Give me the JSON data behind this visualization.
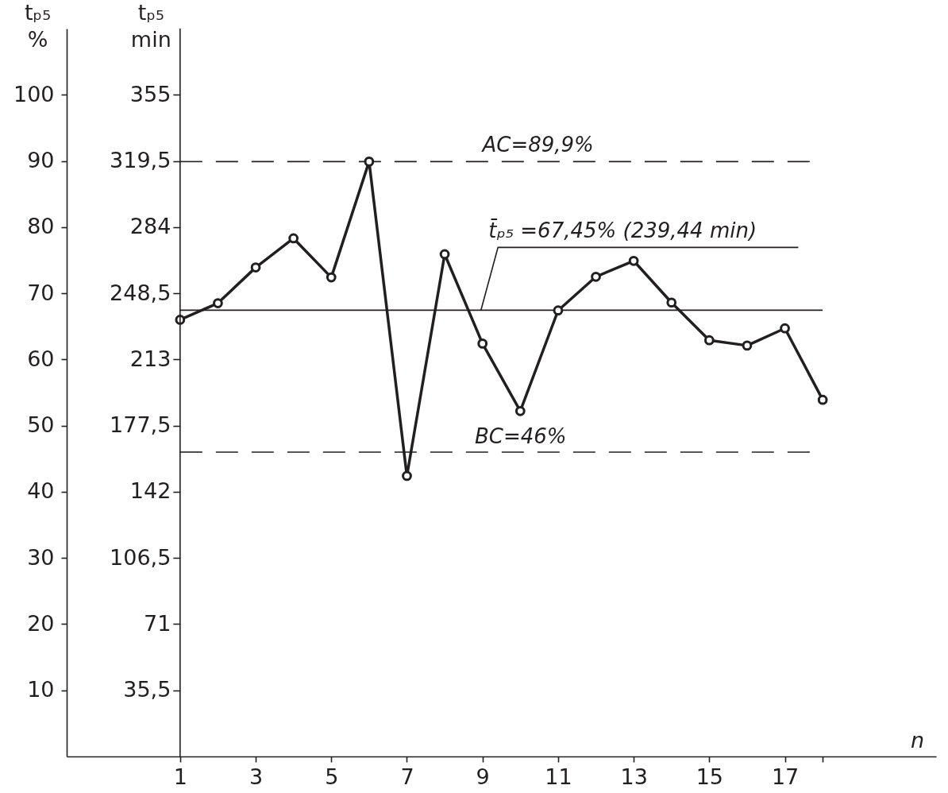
{
  "chart_data": {
    "type": "line",
    "xlabel": "n",
    "ylabel": "tₚ₅\n%",
    "y2label": "tₚ₅\nmin",
    "x": [
      1,
      2,
      3,
      4,
      5,
      6,
      7,
      8,
      9,
      10,
      11,
      12,
      13,
      14,
      15,
      16,
      17,
      18
    ],
    "series": [
      {
        "color": "#231f20",
        "values": [
          66.0,
          68.5,
          73.9,
          78.3,
          72.4,
          89.9,
          42.4,
          75.9,
          62.4,
          52.2,
          67.4,
          72.5,
          74.9,
          68.6,
          62.9,
          62.1,
          64.7,
          53.9
        ]
      }
    ],
    "marker": "circle",
    "line_style": "solid",
    "grid": false,
    "xlim": [
      -2,
      21
    ],
    "xticks": [
      1,
      3,
      5,
      7,
      9,
      11,
      13,
      15,
      17,
      {
        "value": 18,
        "label": null
      }
    ],
    "ylim": [
      0,
      110
    ],
    "yticks": [
      10,
      20,
      30,
      40,
      50,
      60,
      70,
      80,
      90,
      100
    ],
    "y2lim": [
      0,
      390.5
    ],
    "y2ticks": [
      {
        "value": 35.5,
        "label": "35,5"
      },
      71,
      {
        "value": 106.5,
        "label": "106,5"
      },
      142,
      {
        "value": 177.5,
        "label": "177,5"
      },
      213,
      {
        "value": 248.5,
        "label": "248,5"
      },
      284,
      {
        "value": 319.5,
        "label": "319,5"
      },
      355
    ],
    "ref_lines": [
      {
        "axis": "y",
        "value": 89.9,
        "label": "AC=89,9%",
        "line_style": "dashed",
        "color": "#231f20"
      },
      {
        "axis": "y",
        "value": 67.45,
        "label": "t̄ₚ₅ =67,45% (239,44 min)",
        "line_style": "solid",
        "color": "#231f20"
      },
      {
        "axis": "y",
        "value": 46,
        "label": "BC=46%",
        "line_style": "dashed",
        "color": "#231f20"
      }
    ]
  }
}
